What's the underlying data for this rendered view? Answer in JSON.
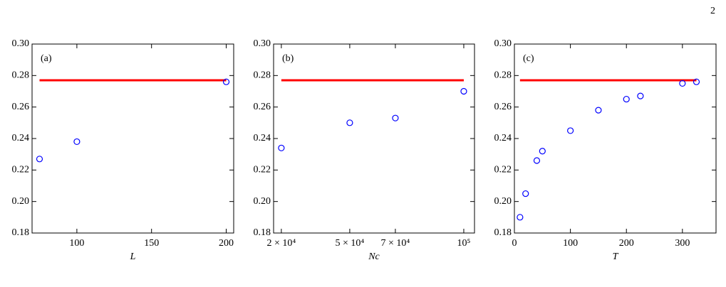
{
  "page_number": "2",
  "chart_data": [
    {
      "type": "scatter",
      "label": "(a)",
      "xlabel": "L",
      "xlim": [
        70,
        205
      ],
      "xticks": [
        100,
        150,
        200
      ],
      "ylim": [
        0.18,
        0.3
      ],
      "yticks": [
        0.18,
        {
          "value": 0.2,
          "label": "0.20"
        },
        0.22,
        0.24,
        0.26,
        0.28,
        {
          "value": 0.3,
          "label": "0.30"
        }
      ],
      "series": [
        {
          "style": "line",
          "color": "#ff0000",
          "x": [
            75,
            200
          ],
          "values": [
            0.277,
            0.277
          ]
        },
        {
          "style": "circle",
          "color": "#0000ff",
          "x": [
            75,
            100,
            200
          ],
          "values": [
            0.227,
            0.238,
            0.276
          ]
        }
      ]
    },
    {
      "type": "scatter",
      "label": "(b)",
      "xlabel": "Nc",
      "xlim": [
        16600,
        104700
      ],
      "xticks": [
        {
          "value": 20000,
          "label": "2 × 10⁴"
        },
        {
          "value": 50000,
          "label": "5 × 10⁴"
        },
        {
          "value": 70000,
          "label": "7 × 10⁴"
        },
        {
          "value": 100000,
          "label": "10⁵"
        }
      ],
      "ylim": [
        0.18,
        0.3
      ],
      "yticks": [
        0.18,
        {
          "value": 0.2,
          "label": "0.20"
        },
        0.22,
        0.24,
        0.26,
        0.28,
        {
          "value": 0.3,
          "label": "0.30"
        }
      ],
      "series": [
        {
          "style": "line",
          "color": "#ff0000",
          "x": [
            20000,
            100000
          ],
          "values": [
            0.277,
            0.277
          ]
        },
        {
          "style": "circle",
          "color": "#0000ff",
          "x": [
            20000,
            50000,
            70000,
            100000
          ],
          "values": [
            0.234,
            0.25,
            0.253,
            0.27
          ]
        }
      ]
    },
    {
      "type": "scatter",
      "label": "(c)",
      "xlabel": "T",
      "xlim": [
        0,
        360
      ],
      "xticks": [
        0,
        100,
        200,
        300
      ],
      "ylim": [
        0.18,
        0.3
      ],
      "yticks": [
        0.18,
        {
          "value": 0.2,
          "label": "0.20"
        },
        0.22,
        0.24,
        0.26,
        0.28,
        {
          "value": 0.3,
          "label": "0.30"
        }
      ],
      "series": [
        {
          "style": "line",
          "color": "#ff0000",
          "x": [
            10,
            325
          ],
          "values": [
            0.277,
            0.277
          ]
        },
        {
          "style": "circle",
          "color": "#0000ff",
          "x": [
            10,
            20,
            40,
            50,
            100,
            150,
            200,
            225,
            300,
            325
          ],
          "values": [
            0.19,
            0.205,
            0.226,
            0.232,
            0.245,
            0.258,
            0.265,
            0.267,
            0.275,
            0.276
          ]
        }
      ]
    }
  ]
}
